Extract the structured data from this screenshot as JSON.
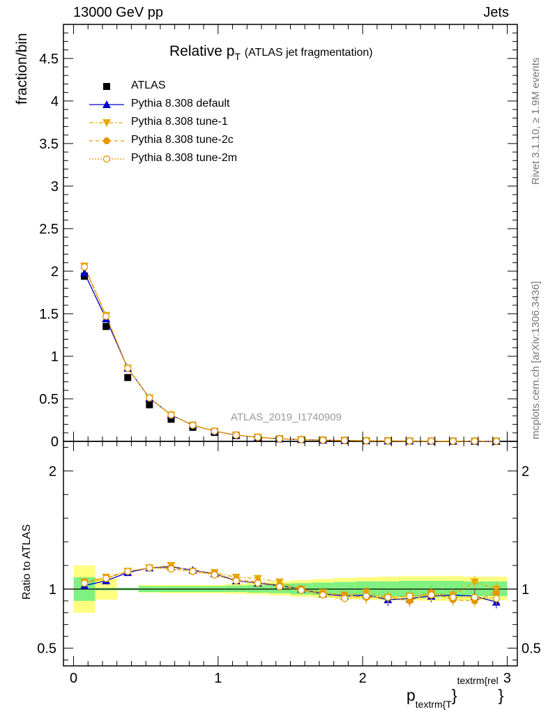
{
  "header": {
    "left": "13000 GeV pp",
    "right": "Jets"
  },
  "side_texts": {
    "rivet": "Rivet 3.1.10, ≥ 1.9M events",
    "mcplots": "mcplots.cern.ch [arXiv:1306.3436]"
  },
  "watermark": "ATLAS_2019_I1740909",
  "title": {
    "main": "Relative p",
    "sub": "T",
    "note": "(ATLAS jet fragmentation)"
  },
  "xlabel": {
    "main": "p",
    "sub": "textrm{T",
    "close": "}",
    "sup": "textrm{rel",
    "sup_close": "}"
  },
  "colors": {
    "atlas": "#000000",
    "default": "#0000cc",
    "tune1": "#e6a800",
    "tune2c": "#e69500",
    "tune2m": "#e69500",
    "band_green": "#80f080",
    "band_yellow": "#ffff80"
  },
  "chart_data": [
    {
      "type": "line",
      "ylabel": "fraction/bin",
      "xlim": [
        -0.07,
        3.07
      ],
      "ylim": [
        0,
        4.9
      ],
      "yticks": [
        "0",
        "0.5",
        "1",
        "1.5",
        "2",
        "2.5",
        "3",
        "3.5",
        "4",
        "4.5"
      ],
      "x": [
        0.075,
        0.225,
        0.375,
        0.525,
        0.675,
        0.825,
        0.975,
        1.125,
        1.275,
        1.425,
        1.575,
        1.725,
        1.875,
        2.025,
        2.175,
        2.325,
        2.475,
        2.625,
        2.775,
        2.925
      ],
      "series": [
        {
          "name": "ATLAS",
          "values": [
            1.94,
            1.35,
            0.75,
            0.43,
            0.26,
            0.165,
            0.105,
            0.068,
            0.045,
            0.03,
            0.021,
            0.015,
            0.011,
            0.008,
            0.006,
            0.0045,
            0.0034,
            0.0026,
            0.002,
            0.0016
          ]
        },
        {
          "name": "Pythia 8.308 default",
          "values": [
            1.98,
            1.44,
            0.86,
            0.51,
            0.31,
            0.19,
            0.12,
            0.073,
            0.048,
            0.031,
            0.021,
            0.0145,
            0.0104,
            0.0076,
            0.0055,
            0.0041,
            0.0032,
            0.0025,
            0.0019,
            0.0014
          ]
        },
        {
          "name": "Pythia 8.308 tune-1",
          "values": [
            2.06,
            1.48,
            0.86,
            0.51,
            0.31,
            0.19,
            0.12,
            0.075,
            0.049,
            0.031,
            0.021,
            0.0146,
            0.0103,
            0.0075,
            0.0054,
            0.004,
            0.0031,
            0.0025,
            0.0019,
            0.0015
          ]
        },
        {
          "name": "Pythia 8.308 tune-2c",
          "values": [
            2.05,
            1.47,
            0.86,
            0.51,
            0.31,
            0.19,
            0.12,
            0.074,
            0.048,
            0.031,
            0.021,
            0.0143,
            0.0103,
            0.0074,
            0.0054,
            0.004,
            0.0032,
            0.0024,
            0.0018,
            0.0015
          ]
        },
        {
          "name": "Pythia 8.308 tune-2m",
          "values": [
            2.05,
            1.47,
            0.86,
            0.51,
            0.31,
            0.19,
            0.12,
            0.074,
            0.048,
            0.031,
            0.021,
            0.0142,
            0.0101,
            0.0075,
            0.0055,
            0.0041,
            0.0032,
            0.0024,
            0.0019,
            0.0015
          ]
        }
      ]
    },
    {
      "type": "line",
      "ylabel": "Ratio to ATLAS",
      "xlim": [
        -0.07,
        3.07
      ],
      "ylim": [
        0.35,
        2.25
      ],
      "yticks": [
        "0.5",
        "1",
        "2"
      ],
      "xticks": [
        "0",
        "1",
        "2",
        "3"
      ],
      "x": [
        0.075,
        0.225,
        0.375,
        0.525,
        0.675,
        0.825,
        0.975,
        1.125,
        1.275,
        1.425,
        1.575,
        1.725,
        1.875,
        2.025,
        2.175,
        2.325,
        2.475,
        2.625,
        2.775,
        2.925
      ],
      "band_1sigma": [
        [
          0.9,
          1.1
        ],
        [
          0.99,
          1.01
        ],
        [
          0.99,
          1.01
        ],
        [
          0.975,
          1.025
        ],
        [
          0.975,
          1.025
        ],
        [
          0.975,
          1.025
        ],
        [
          0.975,
          1.025
        ],
        [
          0.975,
          1.03
        ],
        [
          0.97,
          1.035
        ],
        [
          0.965,
          1.045
        ],
        [
          0.955,
          1.05
        ],
        [
          0.95,
          1.055
        ],
        [
          0.945,
          1.06
        ],
        [
          0.94,
          1.065
        ],
        [
          0.94,
          1.065
        ],
        [
          0.935,
          1.07
        ],
        [
          0.935,
          1.07
        ],
        [
          0.935,
          1.07
        ],
        [
          0.94,
          1.065
        ],
        [
          0.94,
          1.065
        ]
      ],
      "band_2sigma": [
        [
          0.8,
          1.2
        ],
        [
          0.91,
          1.09
        ],
        [
          0.99,
          1.01
        ],
        [
          0.97,
          1.035
        ],
        [
          0.965,
          1.035
        ],
        [
          0.965,
          1.035
        ],
        [
          0.965,
          1.035
        ],
        [
          0.96,
          1.045
        ],
        [
          0.955,
          1.055
        ],
        [
          0.945,
          1.065
        ],
        [
          0.935,
          1.075
        ],
        [
          0.925,
          1.085
        ],
        [
          0.915,
          1.095
        ],
        [
          0.91,
          1.1
        ],
        [
          0.905,
          1.105
        ],
        [
          0.905,
          1.11
        ],
        [
          0.9,
          1.11
        ],
        [
          0.9,
          1.11
        ],
        [
          0.905,
          1.105
        ],
        [
          0.905,
          1.105
        ]
      ],
      "series": [
        {
          "name": "Pythia 8.308 default",
          "values": [
            1.03,
            1.07,
            1.14,
            1.18,
            1.19,
            1.16,
            1.13,
            1.07,
            1.05,
            1.03,
            1.0,
            0.96,
            0.94,
            0.95,
            0.91,
            0.92,
            0.94,
            0.95,
            0.94,
            0.89
          ]
        },
        {
          "name": "Pythia 8.308 tune-1",
          "values": [
            1.06,
            1.1,
            1.15,
            1.18,
            1.2,
            1.15,
            1.14,
            1.1,
            1.09,
            1.06,
            1.0,
            0.97,
            0.95,
            0.97,
            0.93,
            0.94,
            0.96,
            0.95,
            1.06,
            1.0
          ]
        },
        {
          "name": "Pythia 8.308 tune-2c",
          "values": [
            1.06,
            1.09,
            1.15,
            1.18,
            1.18,
            1.15,
            1.13,
            1.08,
            1.06,
            1.03,
            1.0,
            0.96,
            0.95,
            0.93,
            0.93,
            0.9,
            0.97,
            0.91,
            0.9,
            0.97
          ]
        },
        {
          "name": "Pythia 8.308 tune-2m",
          "values": [
            1.05,
            1.09,
            1.15,
            1.18,
            1.17,
            1.15,
            1.12,
            1.07,
            1.05,
            1.02,
            0.99,
            0.95,
            0.92,
            0.94,
            0.93,
            0.94,
            0.95,
            0.93,
            0.93,
            0.92
          ]
        }
      ]
    }
  ],
  "legend": [
    {
      "label": "ATLAS"
    },
    {
      "label": "Pythia 8.308 default"
    },
    {
      "label": "Pythia 8.308 tune-1"
    },
    {
      "label": "Pythia 8.308 tune-2c"
    },
    {
      "label": "Pythia 8.308 tune-2m"
    }
  ]
}
